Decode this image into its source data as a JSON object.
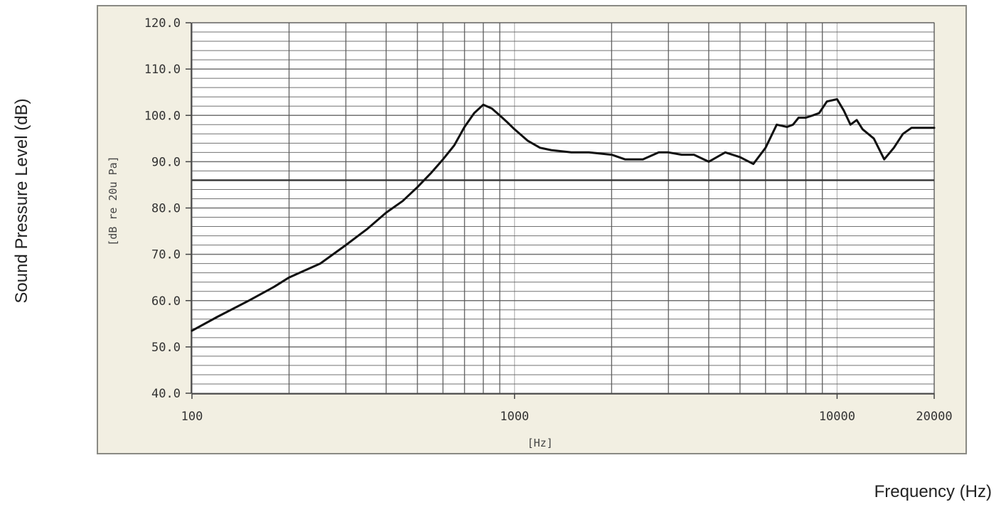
{
  "chart_data": {
    "type": "line",
    "xscale": "log",
    "xlim": [
      100,
      20000
    ],
    "ylim": [
      40,
      120
    ],
    "grid": true,
    "outer_xlabel": "Frequency (Hz)",
    "outer_ylabel": "Sound Pressure Level (dB)",
    "inner_xlabel": "[Hz]",
    "inner_ylabel": "[dB re 20u Pa]",
    "x_tick_labels": [
      {
        "value": 100,
        "label": "100"
      },
      {
        "value": 1000,
        "label": "1000"
      },
      {
        "value": 10000,
        "label": "10000"
      },
      {
        "value": 20000,
        "label": "20000"
      }
    ],
    "y_tick_labels": [
      {
        "value": 120,
        "label": "120.0"
      },
      {
        "value": 110,
        "label": "110.0"
      },
      {
        "value": 100,
        "label": "100.0"
      },
      {
        "value": 90,
        "label": "90.0"
      },
      {
        "value": 80,
        "label": "80.0"
      },
      {
        "value": 70,
        "label": "70.0"
      },
      {
        "value": 60,
        "label": "60.0"
      },
      {
        "value": 50,
        "label": "50.0"
      },
      {
        "value": 40,
        "label": "40.0"
      }
    ],
    "reference_line": 86,
    "x": [
      100,
      120,
      150,
      180,
      200,
      250,
      300,
      350,
      400,
      450,
      500,
      550,
      600,
      650,
      700,
      750,
      800,
      850,
      900,
      950,
      1000,
      1100,
      1200,
      1300,
      1500,
      1700,
      2000,
      2200,
      2500,
      2800,
      3000,
      3300,
      3600,
      4000,
      4500,
      5000,
      5500,
      6000,
      6500,
      7000,
      7300,
      7600,
      8000,
      8400,
      8800,
      9300,
      10000,
      10500,
      11000,
      11500,
      12000,
      13000,
      14000,
      15000,
      16000,
      17000,
      17800,
      18200,
      19000,
      19500,
      20000
    ],
    "y": [
      53.5,
      56.5,
      60,
      63,
      65,
      68,
      72,
      75.5,
      79,
      81.5,
      84.5,
      87.5,
      90.5,
      93.5,
      97.5,
      100.5,
      102.3,
      101.5,
      100,
      98.5,
      97,
      94.5,
      93,
      92.5,
      92,
      92,
      91.5,
      90.5,
      90.5,
      92,
      92,
      91.5,
      91.5,
      90,
      92,
      91,
      89.5,
      93,
      98,
      97.5,
      98,
      99.5,
      99.5,
      100,
      100.5,
      103,
      103.5,
      101,
      98,
      99,
      97,
      95,
      90.5,
      93,
      96,
      97.3,
      97.3,
      97.3,
      97.3,
      97.3,
      97.3
    ],
    "colors": {
      "plot_bg": "#ffffff",
      "frame_bg": "#f2efe2",
      "frame_border": "#8a8a84",
      "grid": "#5a5a5a",
      "line": "#111111"
    }
  }
}
